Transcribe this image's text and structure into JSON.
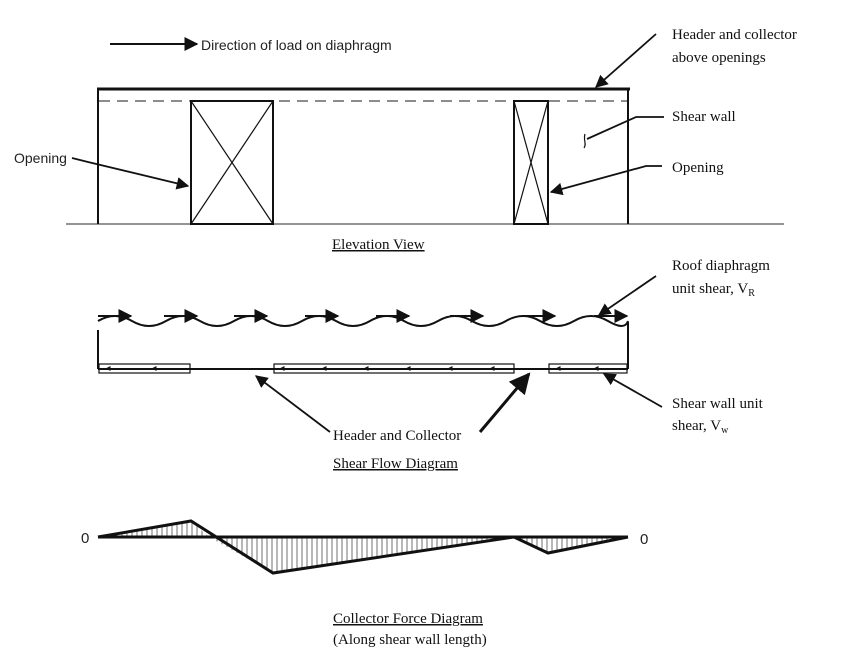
{
  "legend": {
    "load_direction": "Direction of load on diaphragm"
  },
  "labels": {
    "header_collector_above_line1": "Header and collector",
    "header_collector_above_line2": "above openings",
    "shear_wall": "Shear wall",
    "opening_left": "Opening",
    "opening_right": "Opening",
    "roof_diaphragm_line1": "Roof diaphragm",
    "roof_diaphragm_line2": "unit shear, V",
    "roof_diaphragm_sub": "R",
    "shear_wall_unit_line1": "Shear wall unit",
    "shear_wall_unit_line2": "shear, V",
    "shear_wall_unit_sub": "w",
    "header_and_collector": "Header and Collector"
  },
  "captions": {
    "elevation": "Elevation View",
    "shear_flow": "Shear Flow Diagram",
    "collector_force": "Collector Force Diagram",
    "collector_force_sub": "(Along shear wall length)"
  },
  "collector_diagram": {
    "left_zero": "0",
    "right_zero": "0"
  }
}
